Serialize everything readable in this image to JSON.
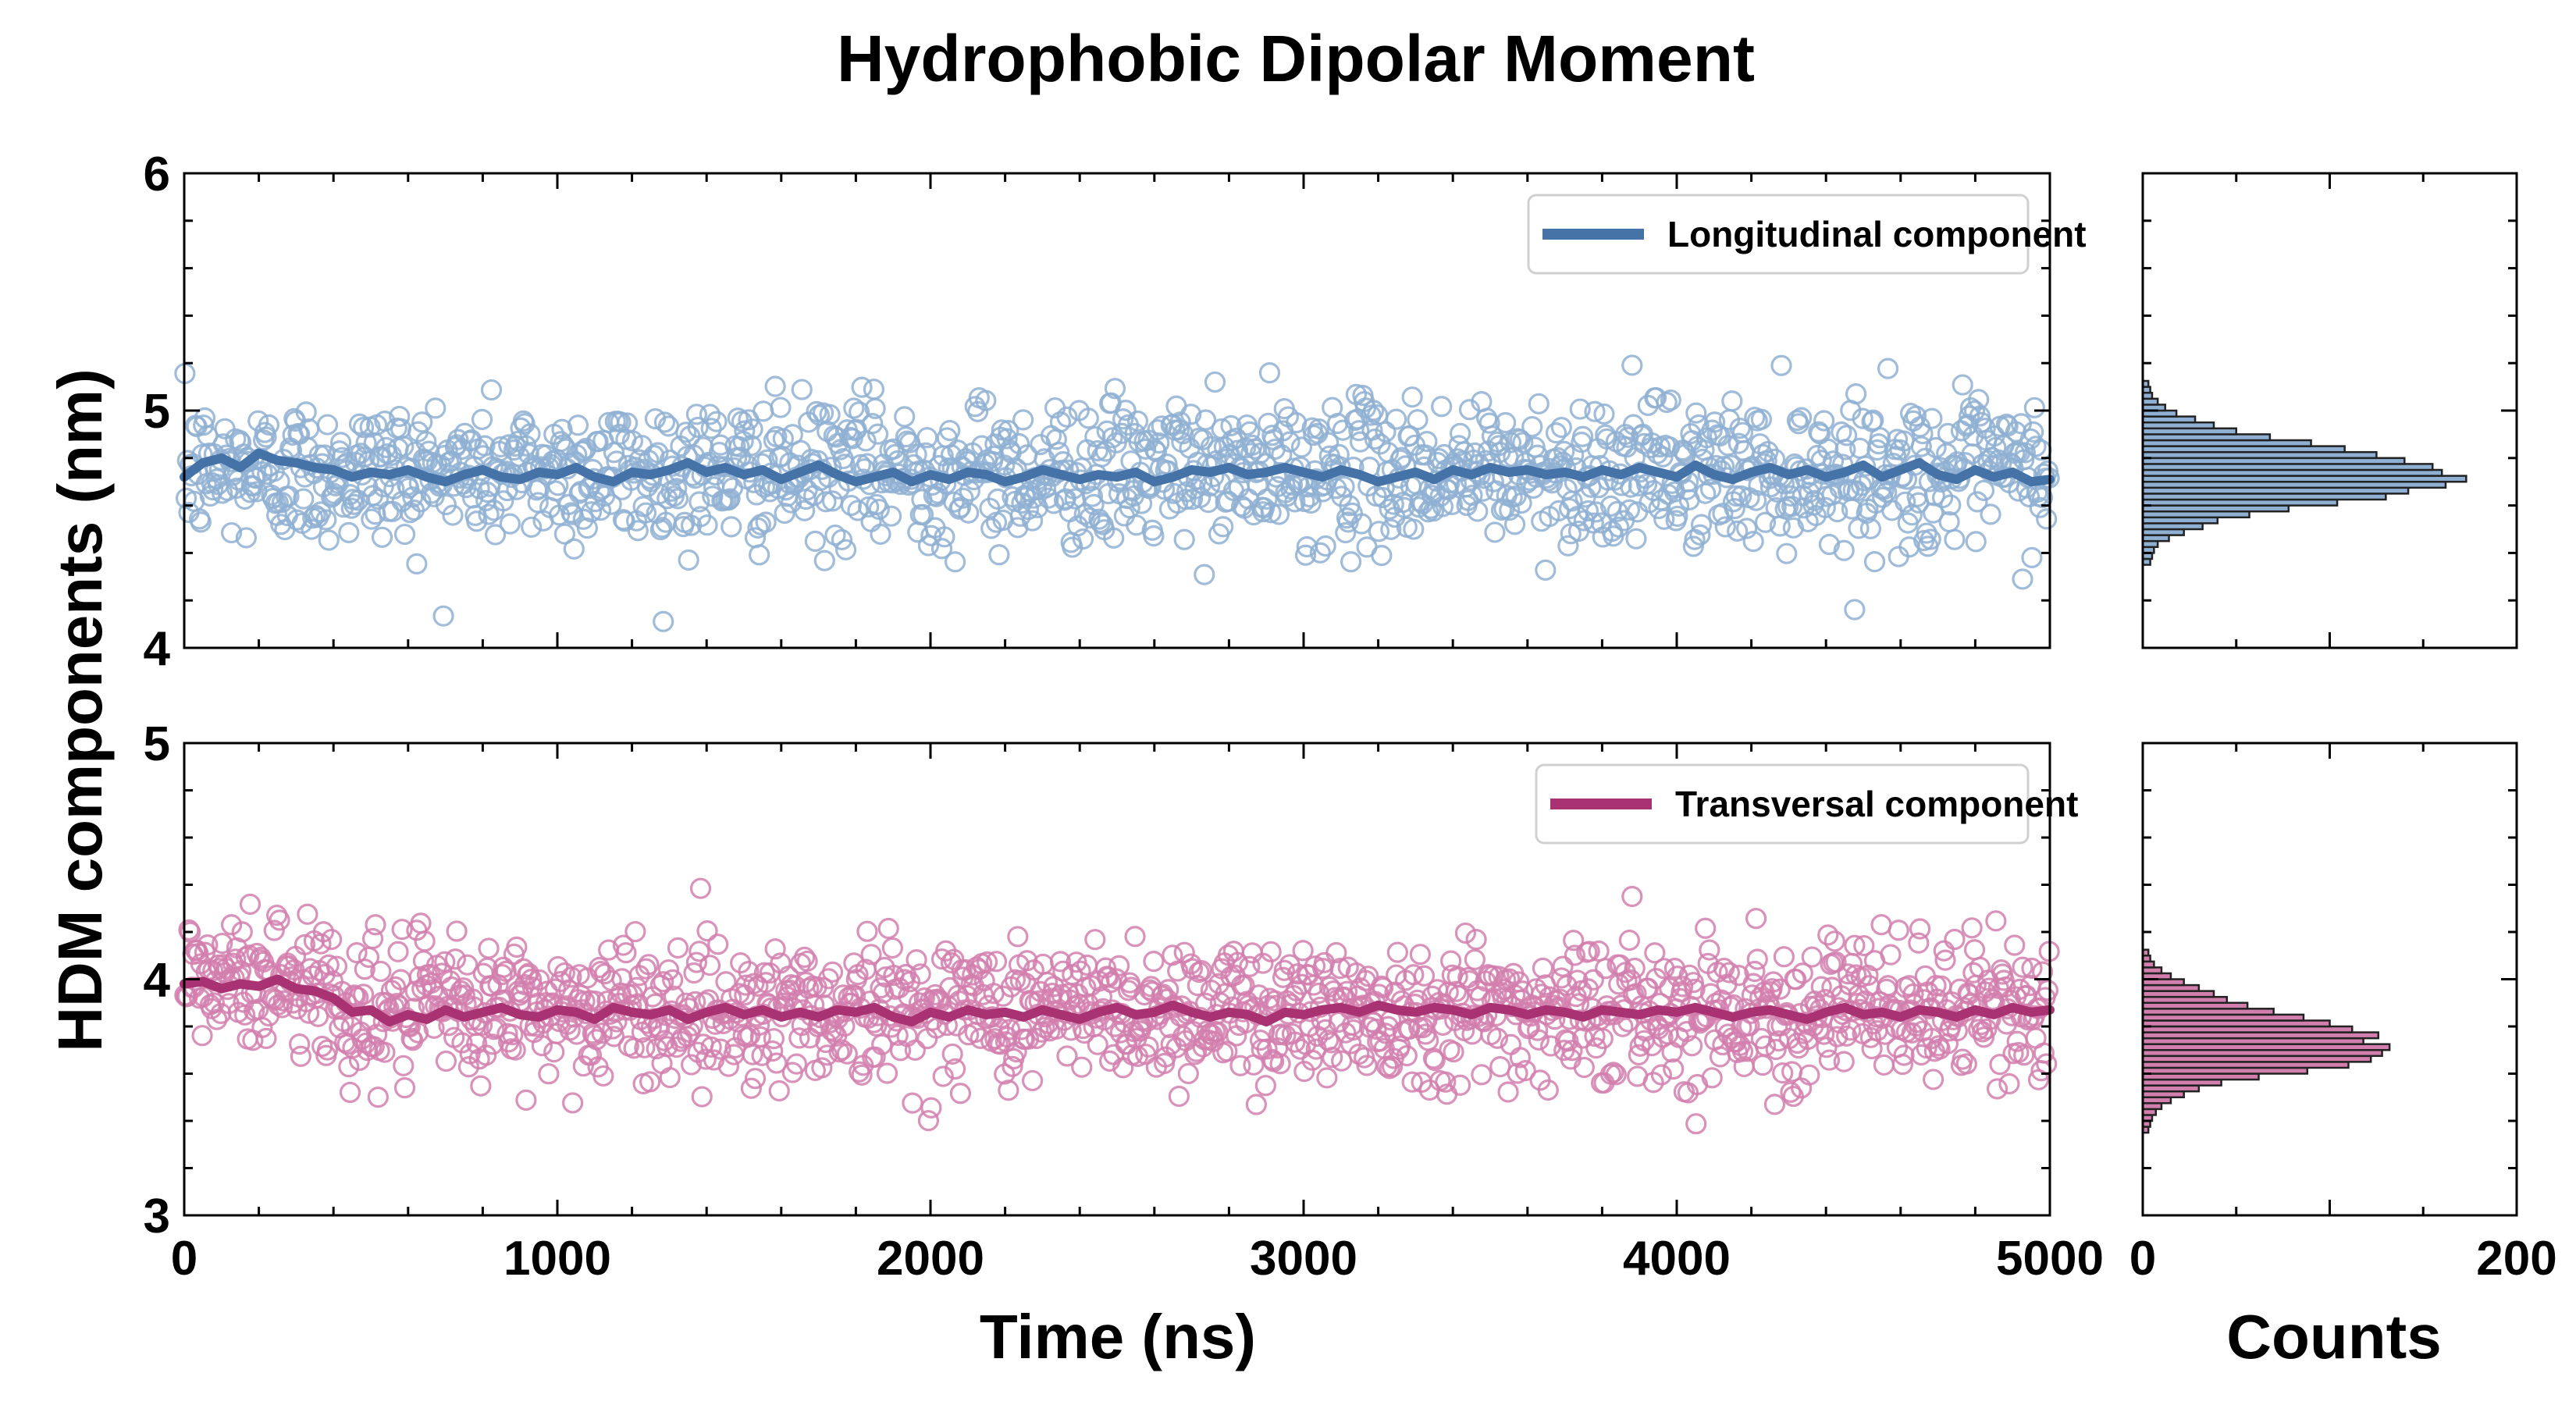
{
  "chart_data": {
    "title": "Hydrophobic Dipolar Moment",
    "ylabel": "HDM components (nm)",
    "xlabel": "Time (ns)",
    "hist_xlabel": "Counts",
    "colors": {
      "longitudinal": "#4572a7",
      "longitudinal_light": "#8fb0d2",
      "transversal": "#a83272",
      "transversal_light": "#d27fae"
    },
    "panels": [
      {
        "type": "scatter",
        "name": "top",
        "xlim": [
          0,
          5000
        ],
        "ylim": [
          4,
          6
        ],
        "ytick_labels": [
          "4",
          "5",
          "6"
        ],
        "series": [
          {
            "name": "Longitudinal component",
            "mean": 4.74,
            "spread": 0.15,
            "n_points": 1400,
            "running_average": [
              [
                0,
                4.72
              ],
              [
                50,
                4.78
              ],
              [
                100,
                4.8
              ],
              [
                150,
                4.76
              ],
              [
                200,
                4.82
              ],
              [
                250,
                4.79
              ],
              [
                300,
                4.78
              ],
              [
                350,
                4.76
              ],
              [
                400,
                4.75
              ],
              [
                450,
                4.72
              ],
              [
                500,
                4.74
              ],
              [
                550,
                4.73
              ],
              [
                600,
                4.75
              ],
              [
                650,
                4.72
              ],
              [
                700,
                4.7
              ],
              [
                750,
                4.73
              ],
              [
                800,
                4.75
              ],
              [
                850,
                4.72
              ],
              [
                900,
                4.71
              ],
              [
                950,
                4.74
              ],
              [
                1000,
                4.73
              ],
              [
                1050,
                4.76
              ],
              [
                1100,
                4.72
              ],
              [
                1150,
                4.7
              ],
              [
                1200,
                4.74
              ],
              [
                1250,
                4.73
              ],
              [
                1300,
                4.75
              ],
              [
                1350,
                4.78
              ],
              [
                1400,
                4.74
              ],
              [
                1450,
                4.76
              ],
              [
                1500,
                4.73
              ],
              [
                1550,
                4.75
              ],
              [
                1600,
                4.71
              ],
              [
                1650,
                4.74
              ],
              [
                1700,
                4.77
              ],
              [
                1750,
                4.73
              ],
              [
                1800,
                4.7
              ],
              [
                1850,
                4.72
              ],
              [
                1900,
                4.74
              ],
              [
                1950,
                4.7
              ],
              [
                2000,
                4.73
              ],
              [
                2050,
                4.71
              ],
              [
                2100,
                4.74
              ],
              [
                2150,
                4.73
              ],
              [
                2200,
                4.7
              ],
              [
                2250,
                4.72
              ],
              [
                2300,
                4.75
              ],
              [
                2350,
                4.73
              ],
              [
                2400,
                4.71
              ],
              [
                2450,
                4.73
              ],
              [
                2500,
                4.72
              ],
              [
                2550,
                4.74
              ],
              [
                2600,
                4.7
              ],
              [
                2650,
                4.72
              ],
              [
                2700,
                4.75
              ],
              [
                2750,
                4.74
              ],
              [
                2800,
                4.76
              ],
              [
                2850,
                4.73
              ],
              [
                2900,
                4.74
              ],
              [
                2950,
                4.76
              ],
              [
                3000,
                4.74
              ],
              [
                3050,
                4.72
              ],
              [
                3100,
                4.75
              ],
              [
                3150,
                4.73
              ],
              [
                3200,
                4.7
              ],
              [
                3250,
                4.72
              ],
              [
                3300,
                4.74
              ],
              [
                3350,
                4.71
              ],
              [
                3400,
                4.75
              ],
              [
                3450,
                4.73
              ],
              [
                3500,
                4.76
              ],
              [
                3550,
                4.74
              ],
              [
                3600,
                4.75
              ],
              [
                3650,
                4.73
              ],
              [
                3700,
                4.74
              ],
              [
                3750,
                4.72
              ],
              [
                3800,
                4.75
              ],
              [
                3850,
                4.73
              ],
              [
                3900,
                4.76
              ],
              [
                3950,
                4.74
              ],
              [
                4000,
                4.72
              ],
              [
                4050,
                4.77
              ],
              [
                4100,
                4.73
              ],
              [
                4150,
                4.71
              ],
              [
                4200,
                4.74
              ],
              [
                4250,
                4.76
              ],
              [
                4300,
                4.73
              ],
              [
                4350,
                4.75
              ],
              [
                4400,
                4.72
              ],
              [
                4450,
                4.74
              ],
              [
                4500,
                4.77
              ],
              [
                4550,
                4.72
              ],
              [
                4600,
                4.75
              ],
              [
                4650,
                4.78
              ],
              [
                4700,
                4.73
              ],
              [
                4750,
                4.71
              ],
              [
                4800,
                4.75
              ],
              [
                4850,
                4.72
              ],
              [
                4900,
                4.74
              ],
              [
                4950,
                4.7
              ],
              [
                5000,
                4.71
              ]
            ]
          }
        ],
        "legend_location": "upper right"
      },
      {
        "type": "scatter",
        "name": "bottom",
        "xlim": [
          0,
          5000
        ],
        "ylim": [
          3,
          5
        ],
        "ytick_labels": [
          "3",
          "4",
          "5"
        ],
        "xtick_labels": [
          "0",
          "1000",
          "2000",
          "3000",
          "4000",
          "5000"
        ],
        "series": [
          {
            "name": "Transversal component",
            "mean": 3.87,
            "spread": 0.15,
            "n_points": 1400,
            "running_average": [
              [
                0,
                3.98
              ],
              [
                50,
                3.99
              ],
              [
                100,
                3.96
              ],
              [
                150,
                3.98
              ],
              [
                200,
                3.97
              ],
              [
                250,
                4.0
              ],
              [
                300,
                3.96
              ],
              [
                350,
                3.95
              ],
              [
                400,
                3.92
              ],
              [
                450,
                3.86
              ],
              [
                500,
                3.87
              ],
              [
                550,
                3.82
              ],
              [
                600,
                3.85
              ],
              [
                650,
                3.83
              ],
              [
                700,
                3.87
              ],
              [
                750,
                3.84
              ],
              [
                800,
                3.86
              ],
              [
                850,
                3.88
              ],
              [
                900,
                3.85
              ],
              [
                950,
                3.84
              ],
              [
                1000,
                3.87
              ],
              [
                1050,
                3.86
              ],
              [
                1100,
                3.83
              ],
              [
                1150,
                3.88
              ],
              [
                1200,
                3.86
              ],
              [
                1250,
                3.85
              ],
              [
                1300,
                3.87
              ],
              [
                1350,
                3.83
              ],
              [
                1400,
                3.86
              ],
              [
                1450,
                3.88
              ],
              [
                1500,
                3.85
              ],
              [
                1550,
                3.87
              ],
              [
                1600,
                3.84
              ],
              [
                1650,
                3.86
              ],
              [
                1700,
                3.84
              ],
              [
                1750,
                3.87
              ],
              [
                1800,
                3.86
              ],
              [
                1850,
                3.88
              ],
              [
                1900,
                3.84
              ],
              [
                1950,
                3.82
              ],
              [
                2000,
                3.86
              ],
              [
                2050,
                3.84
              ],
              [
                2100,
                3.87
              ],
              [
                2150,
                3.85
              ],
              [
                2200,
                3.86
              ],
              [
                2250,
                3.84
              ],
              [
                2300,
                3.87
              ],
              [
                2350,
                3.85
              ],
              [
                2400,
                3.83
              ],
              [
                2450,
                3.86
              ],
              [
                2500,
                3.88
              ],
              [
                2550,
                3.85
              ],
              [
                2600,
                3.86
              ],
              [
                2650,
                3.89
              ],
              [
                2700,
                3.86
              ],
              [
                2750,
                3.84
              ],
              [
                2800,
                3.86
              ],
              [
                2850,
                3.85
              ],
              [
                2900,
                3.82
              ],
              [
                2950,
                3.86
              ],
              [
                3000,
                3.85
              ],
              [
                3050,
                3.87
              ],
              [
                3100,
                3.88
              ],
              [
                3150,
                3.86
              ],
              [
                3200,
                3.89
              ],
              [
                3250,
                3.87
              ],
              [
                3300,
                3.86
              ],
              [
                3350,
                3.88
              ],
              [
                3400,
                3.87
              ],
              [
                3450,
                3.85
              ],
              [
                3500,
                3.88
              ],
              [
                3550,
                3.87
              ],
              [
                3600,
                3.85
              ],
              [
                3650,
                3.87
              ],
              [
                3700,
                3.86
              ],
              [
                3750,
                3.84
              ],
              [
                3800,
                3.87
              ],
              [
                3850,
                3.86
              ],
              [
                3900,
                3.85
              ],
              [
                3950,
                3.87
              ],
              [
                4000,
                3.86
              ],
              [
                4050,
                3.88
              ],
              [
                4100,
                3.86
              ],
              [
                4150,
                3.84
              ],
              [
                4200,
                3.86
              ],
              [
                4250,
                3.87
              ],
              [
                4300,
                3.85
              ],
              [
                4350,
                3.83
              ],
              [
                4400,
                3.86
              ],
              [
                4450,
                3.88
              ],
              [
                4500,
                3.85
              ],
              [
                4550,
                3.86
              ],
              [
                4600,
                3.84
              ],
              [
                4650,
                3.87
              ],
              [
                4700,
                3.86
              ],
              [
                4750,
                3.84
              ],
              [
                4800,
                3.87
              ],
              [
                4850,
                3.85
              ],
              [
                4900,
                3.88
              ],
              [
                4950,
                3.86
              ],
              [
                5000,
                3.87
              ]
            ]
          }
        ],
        "legend_location": "upper right"
      }
    ],
    "histograms": [
      {
        "type": "bar",
        "orientation": "horizontal",
        "xlim": [
          0,
          200
        ],
        "ylim": [
          4,
          6
        ],
        "bin_edges_start": 4.35,
        "bin_width": 0.025,
        "counts": [
          4,
          5,
          6,
          8,
          14,
          22,
          32,
          40,
          57,
          78,
          104,
          130,
          142,
          162,
          173,
          160,
          155,
          140,
          125,
          108,
          90,
          68,
          50,
          38,
          28,
          18,
          12,
          8,
          5,
          4,
          3
        ],
        "color": "#8fb0d2"
      },
      {
        "type": "bar",
        "orientation": "horizontal",
        "xlim": [
          0,
          200
        ],
        "xtick_labels": [
          "0",
          "200"
        ],
        "ylim": [
          3,
          5
        ],
        "bin_edges_start": 3.35,
        "bin_width": 0.025,
        "counts": [
          3,
          4,
          5,
          7,
          10,
          15,
          22,
          30,
          42,
          62,
          88,
          110,
          122,
          128,
          132,
          118,
          126,
          112,
          100,
          86,
          70,
          56,
          45,
          38,
          30,
          22,
          15,
          10,
          6,
          4,
          3
        ],
        "color": "#d27fae"
      }
    ]
  }
}
